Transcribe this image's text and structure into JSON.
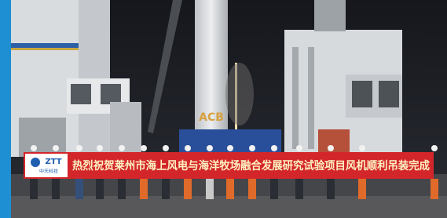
{
  "tower_label": "ACB",
  "banner": {
    "logo": "ZTT",
    "logo_subtitle": "中天科技",
    "text": "热烈祝贺莱州市海上风电与海洋牧场融合发展研究试验项目风机顺利吊装完成"
  }
}
